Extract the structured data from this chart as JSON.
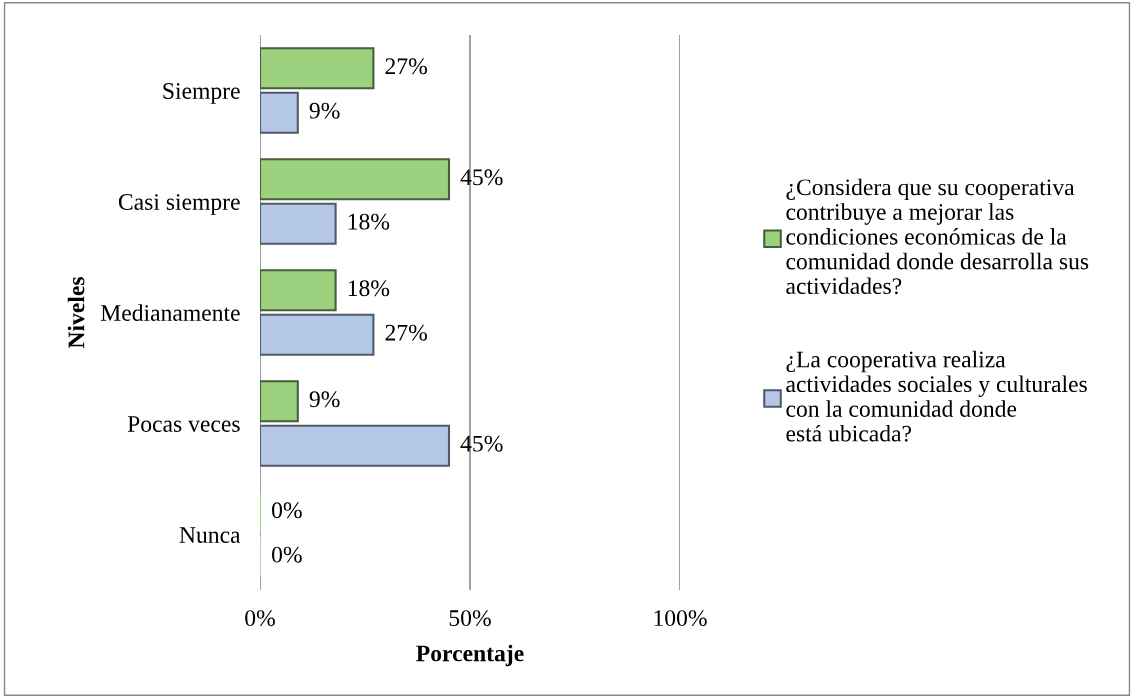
{
  "chart_data": {
    "type": "bar",
    "orientation": "horizontal",
    "xlabel": "Porcentaje",
    "ylabel": "Niveles",
    "categories": [
      "Siempre",
      "Casi siempre",
      "Medianamente",
      "Pocas veces",
      "Nunca"
    ],
    "series": [
      {
        "name": "¿Considera que su cooperativa\ncontribuye a mejorar las\ncondiciones económicas de la\ncomunidad donde desarrolla sus\nactividades?",
        "color": "#9bd17f",
        "values": [
          27,
          45,
          18,
          9,
          0
        ],
        "value_labels": [
          "27%",
          "45%",
          "18%",
          "9%",
          "0%"
        ]
      },
      {
        "name": "¿La cooperativa realiza\nactividades sociales y culturales\ncon la comunidad donde\nestá ubicada?",
        "color": "#b4c7e7",
        "values": [
          9,
          18,
          27,
          45,
          0
        ],
        "value_labels": [
          "9%",
          "18%",
          "27%",
          "45%",
          "0%"
        ]
      }
    ],
    "xlim": [
      0,
      100
    ],
    "xticks": [
      {
        "value": 0,
        "label": "0%"
      },
      {
        "value": 50,
        "label": "50%"
      },
      {
        "value": 100,
        "label": "100%"
      }
    ],
    "grid": "x",
    "legend": "right"
  }
}
